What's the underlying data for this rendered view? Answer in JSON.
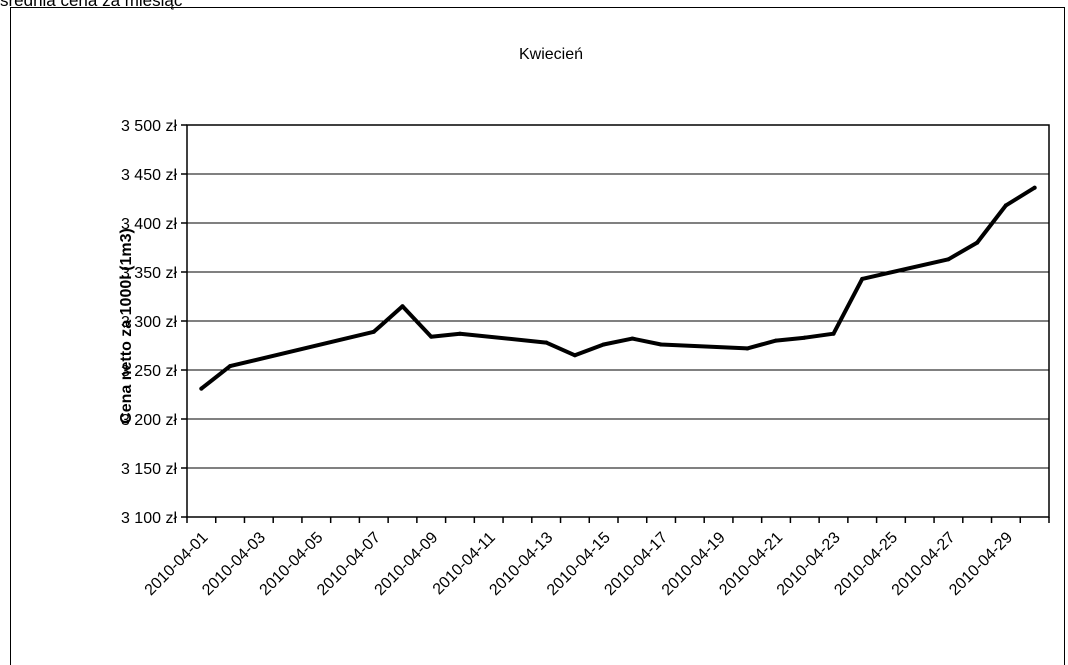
{
  "page_heading": "średnia cena za miesiąc",
  "chart_data": {
    "type": "line",
    "title": "Kwiecień",
    "xlabel": "",
    "ylabel": "Cena netto za 1000l (1m3)",
    "ylim": [
      3100,
      3500
    ],
    "yticks": [
      3100,
      3150,
      3200,
      3250,
      3300,
      3350,
      3400,
      3450,
      3500
    ],
    "ytick_labels": [
      "3 100 zł",
      "3 150 zł",
      "3 200 zł",
      "3 250 zł",
      "3 300 zł",
      "3 350 zł",
      "3 400 zł",
      "3 450 zł",
      "3 500 zł"
    ],
    "xlim": [
      "2010-04-01",
      "2010-04-30"
    ],
    "xtick_labels": [
      "2010-04-01",
      "2010-04-03",
      "2010-04-05",
      "2010-04-07",
      "2010-04-09",
      "2010-04-11",
      "2010-04-13",
      "2010-04-15",
      "2010-04-17",
      "2010-04-19",
      "2010-04-21",
      "2010-04-23",
      "2010-04-25",
      "2010-04-27",
      "2010-04-29"
    ],
    "grid": true,
    "legend": "none",
    "series": [
      {
        "color": "#000000",
        "points": [
          {
            "x": "2010-04-01",
            "y": 3231
          },
          {
            "x": "2010-04-02",
            "y": 3254
          },
          {
            "x": "2010-04-07",
            "y": 3289
          },
          {
            "x": "2010-04-08",
            "y": 3315
          },
          {
            "x": "2010-04-09",
            "y": 3284
          },
          {
            "x": "2010-04-10",
            "y": 3287
          },
          {
            "x": "2010-04-13",
            "y": 3278
          },
          {
            "x": "2010-04-14",
            "y": 3265
          },
          {
            "x": "2010-04-15",
            "y": 3276
          },
          {
            "x": "2010-04-16",
            "y": 3282
          },
          {
            "x": "2010-04-17",
            "y": 3276
          },
          {
            "x": "2010-04-20",
            "y": 3272
          },
          {
            "x": "2010-04-21",
            "y": 3280
          },
          {
            "x": "2010-04-22",
            "y": 3283
          },
          {
            "x": "2010-04-23",
            "y": 3287
          },
          {
            "x": "2010-04-24",
            "y": 3343
          },
          {
            "x": "2010-04-27",
            "y": 3363
          },
          {
            "x": "2010-04-28",
            "y": 3380
          },
          {
            "x": "2010-04-29",
            "y": 3418
          },
          {
            "x": "2010-04-30",
            "y": 3436
          }
        ]
      }
    ]
  }
}
